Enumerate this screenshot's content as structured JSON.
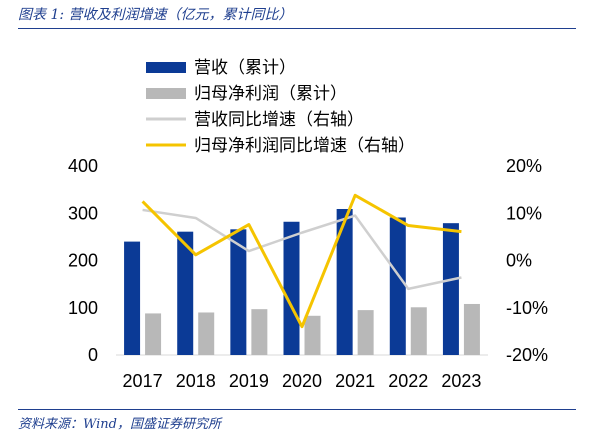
{
  "caption": "图表 1: 营收及利润增速（亿元，累计同比）",
  "source": "资料来源：Wind，国盛证券研究所",
  "colors": {
    "revenue_bar": "#0b3a96",
    "profit_bar": "#b8b8b8",
    "revenue_growth_line": "#cfcfcf",
    "profit_growth_line": "#f5c400",
    "rule": "#1f3f8f"
  },
  "chart_data": {
    "type": "bar",
    "categories": [
      "2017",
      "2018",
      "2019",
      "2020",
      "2021",
      "2022",
      "2023"
    ],
    "left_axis": {
      "ylim": [
        0,
        400
      ],
      "ticks": [
        0,
        100,
        200,
        300,
        400
      ],
      "tick_labels": [
        "0",
        "100",
        "200",
        "300",
        "400"
      ]
    },
    "right_axis": {
      "ylim": [
        -20,
        20
      ],
      "ticks": [
        -20,
        -10,
        0,
        10,
        20
      ],
      "tick_labels": [
        "-20%",
        "-10%",
        "0%",
        "10%",
        "20%"
      ]
    },
    "legend_position": "top",
    "series": [
      {
        "name": "营收（累计）",
        "type": "bar",
        "axis": "left",
        "values": [
          240,
          261,
          266,
          282,
          309,
          291,
          279
        ]
      },
      {
        "name": "归母净利润（累计）",
        "type": "bar",
        "axis": "left",
        "values": [
          88,
          90,
          97,
          83,
          95,
          101,
          108
        ]
      },
      {
        "name": "营收同比增速（右轴）",
        "type": "line",
        "axis": "right",
        "values": [
          10.7,
          9.0,
          2.0,
          5.9,
          9.5,
          -6.0,
          -3.6
        ]
      },
      {
        "name": "归母净利润同比增速（右轴）",
        "type": "line",
        "axis": "right",
        "values": [
          12.5,
          1.2,
          7.6,
          -14.0,
          13.8,
          7.4,
          6.1
        ]
      }
    ]
  }
}
